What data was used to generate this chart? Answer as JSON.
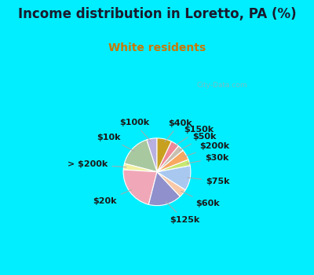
{
  "title": "Income distribution in Loretto, PA (%)",
  "subtitle": "White residents",
  "title_color": "#1a1a2e",
  "subtitle_color": "#cc7700",
  "bg_outer": "#00eeff",
  "bg_inner_top": "#e8f5f0",
  "bg_inner_bottom": "#d0eedd",
  "watermark": "City-Data.com",
  "labels": [
    "$100k",
    "$10k",
    "> $200k",
    "$20k",
    "$125k",
    "$60k",
    "$75k",
    "$30k",
    "$200k",
    "$50k",
    "$150k",
    "$40k"
  ],
  "values": [
    5,
    16,
    3,
    22,
    16,
    4,
    12,
    3,
    5,
    3,
    4,
    7
  ],
  "colors": [
    "#b8b0e0",
    "#a8c8a0",
    "#f0f0a0",
    "#f0a8b8",
    "#9090cc",
    "#f8c8a8",
    "#a8c8f0",
    "#c8e870",
    "#f8a860",
    "#c8bfb0",
    "#f08898",
    "#c8a020"
  ],
  "startangle": 90,
  "label_fontsize": 8,
  "title_fontsize": 12,
  "subtitle_fontsize": 10,
  "pct_distance": 0.6
}
